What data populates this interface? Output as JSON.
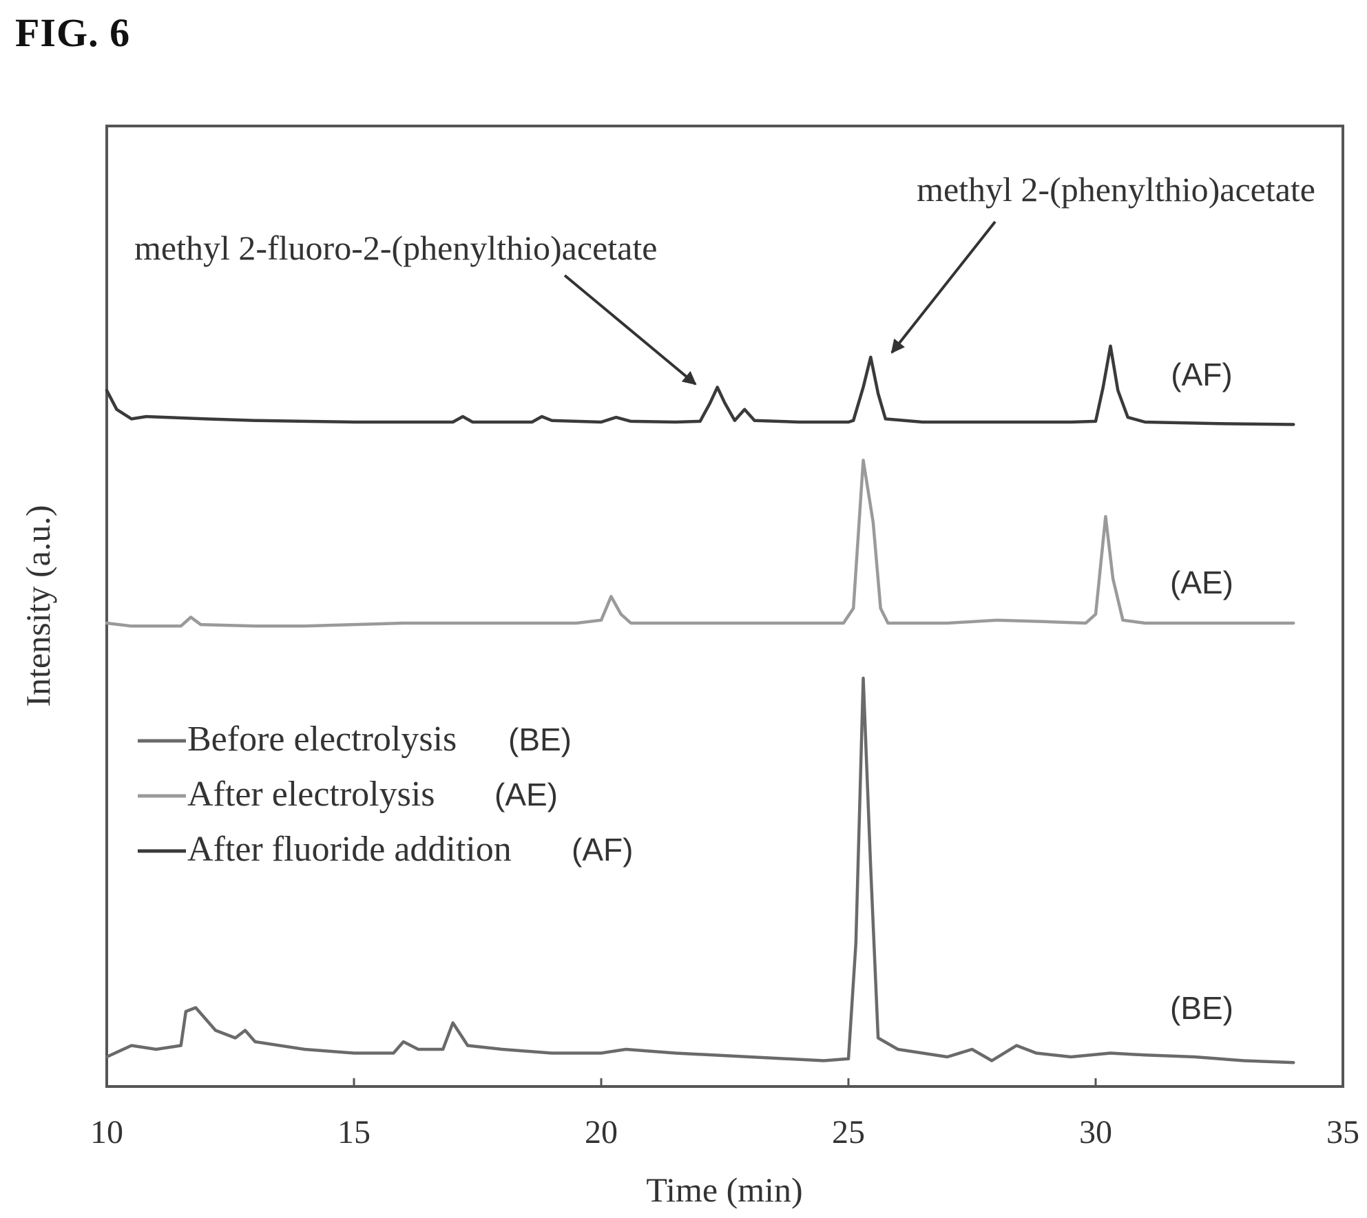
{
  "figure_label": "FIG. 6",
  "chart_data": {
    "type": "line",
    "title": "",
    "xlabel": "Time (min)",
    "ylabel": "Intensity (a.u.)",
    "xlim": [
      10,
      35
    ],
    "xticks": [
      10,
      15,
      20,
      25,
      30,
      35
    ],
    "yticks": [],
    "grid": false,
    "legend_position": "lower-left",
    "legend": [
      {
        "label": "Before electrolysis",
        "tag": "(BE)",
        "color": "#6a6a6a"
      },
      {
        "label": "After electrolysis",
        "tag": "(AE)",
        "color": "#9a9a9a"
      },
      {
        "label": "After fluoride addition",
        "tag": "(AF)",
        "color": "#3a3a3a"
      }
    ],
    "series": [
      {
        "name": "(AF)",
        "tag": "(AF)",
        "color": "#3a3a3a",
        "points": [
          [
            10.0,
            0.2
          ],
          [
            10.2,
            0.08
          ],
          [
            10.5,
            0.02
          ],
          [
            10.8,
            0.035
          ],
          [
            11.2,
            0.03
          ],
          [
            12.0,
            0.02
          ],
          [
            13.0,
            0.01
          ],
          [
            14.0,
            0.005
          ],
          [
            15.0,
            0.0
          ],
          [
            16.0,
            0.0
          ],
          [
            17.0,
            0.0
          ],
          [
            17.2,
            0.035
          ],
          [
            17.4,
            0.0
          ],
          [
            18.0,
            0.0
          ],
          [
            18.6,
            0.0
          ],
          [
            18.8,
            0.035
          ],
          [
            19.0,
            0.01
          ],
          [
            20.0,
            0.0
          ],
          [
            20.3,
            0.03
          ],
          [
            20.6,
            0.005
          ],
          [
            21.5,
            0.0
          ],
          [
            22.0,
            0.005
          ],
          [
            22.2,
            0.12
          ],
          [
            22.35,
            0.22
          ],
          [
            22.5,
            0.12
          ],
          [
            22.7,
            0.01
          ],
          [
            22.9,
            0.08
          ],
          [
            23.1,
            0.01
          ],
          [
            24.0,
            0.0
          ],
          [
            25.0,
            0.0
          ],
          [
            25.1,
            0.01
          ],
          [
            25.3,
            0.22
          ],
          [
            25.45,
            0.41
          ],
          [
            25.6,
            0.18
          ],
          [
            25.75,
            0.02
          ],
          [
            26.5,
            0.0
          ],
          [
            28.0,
            0.0
          ],
          [
            29.5,
            0.0
          ],
          [
            30.0,
            0.005
          ],
          [
            30.15,
            0.22
          ],
          [
            30.3,
            0.48
          ],
          [
            30.45,
            0.2
          ],
          [
            30.65,
            0.03
          ],
          [
            31.0,
            0.0
          ],
          [
            32.5,
            -0.01
          ],
          [
            34.0,
            -0.015
          ]
        ]
      },
      {
        "name": "(AE)",
        "tag": "(AE)",
        "color": "#9a9a9a",
        "points": [
          [
            10.0,
            0.0
          ],
          [
            10.5,
            -0.01
          ],
          [
            11.5,
            -0.01
          ],
          [
            11.7,
            0.02
          ],
          [
            11.9,
            -0.005
          ],
          [
            13.0,
            -0.01
          ],
          [
            14.0,
            -0.01
          ],
          [
            15.0,
            -0.005
          ],
          [
            16.0,
            0.0
          ],
          [
            18.0,
            0.0
          ],
          [
            19.5,
            0.0
          ],
          [
            20.0,
            0.01
          ],
          [
            20.2,
            0.09
          ],
          [
            20.4,
            0.03
          ],
          [
            20.6,
            0.0
          ],
          [
            22.0,
            0.0
          ],
          [
            23.0,
            0.0
          ],
          [
            24.9,
            0.0
          ],
          [
            25.1,
            0.05
          ],
          [
            25.3,
            0.55
          ],
          [
            25.5,
            0.34
          ],
          [
            25.65,
            0.05
          ],
          [
            25.8,
            0.0
          ],
          [
            27.0,
            0.0
          ],
          [
            28.0,
            0.01
          ],
          [
            29.0,
            0.005
          ],
          [
            29.8,
            0.0
          ],
          [
            30.0,
            0.03
          ],
          [
            30.2,
            0.36
          ],
          [
            30.35,
            0.15
          ],
          [
            30.55,
            0.01
          ],
          [
            31.0,
            0.0
          ],
          [
            33.0,
            0.0
          ],
          [
            34.0,
            0.0
          ]
        ]
      },
      {
        "name": "(BE)",
        "tag": "(BE)",
        "color": "#6a6a6a",
        "points": [
          [
            10.0,
            0.0
          ],
          [
            10.5,
            0.03
          ],
          [
            11.0,
            0.02
          ],
          [
            11.5,
            0.03
          ],
          [
            11.6,
            0.12
          ],
          [
            11.8,
            0.13
          ],
          [
            12.2,
            0.07
          ],
          [
            12.6,
            0.05
          ],
          [
            12.8,
            0.07
          ],
          [
            13.0,
            0.04
          ],
          [
            14.0,
            0.02
          ],
          [
            15.0,
            0.01
          ],
          [
            15.8,
            0.01
          ],
          [
            16.0,
            0.04
          ],
          [
            16.3,
            0.02
          ],
          [
            16.8,
            0.02
          ],
          [
            17.0,
            0.09
          ],
          [
            17.3,
            0.03
          ],
          [
            18.0,
            0.02
          ],
          [
            19.0,
            0.01
          ],
          [
            20.0,
            0.01
          ],
          [
            20.5,
            0.02
          ],
          [
            21.5,
            0.01
          ],
          [
            23.0,
            0.0
          ],
          [
            24.5,
            -0.01
          ],
          [
            25.0,
            -0.005
          ],
          [
            25.15,
            0.3
          ],
          [
            25.3,
            1.0
          ],
          [
            25.45,
            0.5
          ],
          [
            25.6,
            0.05
          ],
          [
            26.0,
            0.02
          ],
          [
            27.0,
            0.0
          ],
          [
            27.5,
            0.02
          ],
          [
            27.9,
            -0.01
          ],
          [
            28.4,
            0.03
          ],
          [
            28.8,
            0.01
          ],
          [
            29.5,
            0.0
          ],
          [
            30.3,
            0.01
          ],
          [
            31.0,
            0.005
          ],
          [
            32.0,
            0.0
          ],
          [
            33.0,
            -0.01
          ],
          [
            34.0,
            -0.015
          ]
        ]
      }
    ],
    "annotations": [
      {
        "text": "methyl 2-fluoro-2-(phenylthio)acetate",
        "series": "(AF)",
        "x": 22.35
      },
      {
        "text": "methyl 2-(phenylthio)acetate",
        "series": "(AF)",
        "x": 25.45
      }
    ]
  }
}
